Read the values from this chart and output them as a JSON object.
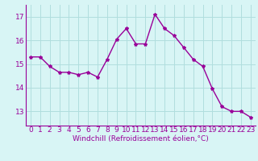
{
  "x": [
    0,
    1,
    2,
    3,
    4,
    5,
    6,
    7,
    8,
    9,
    10,
    11,
    12,
    13,
    14,
    15,
    16,
    17,
    18,
    19,
    20,
    21,
    22,
    23
  ],
  "y": [
    15.3,
    15.3,
    14.9,
    14.65,
    14.65,
    14.55,
    14.65,
    14.45,
    15.2,
    16.05,
    16.5,
    15.85,
    15.85,
    17.1,
    16.5,
    16.2,
    15.7,
    15.2,
    14.9,
    13.95,
    13.2,
    13.0,
    13.0,
    12.75
  ],
  "line_color": "#990099",
  "marker": "*",
  "marker_size": 3,
  "bg_color": "#d8f5f5",
  "grid_color": "#b0dede",
  "xlabel": "Windchill (Refroidissement éolien,°C)",
  "ylabel_ticks": [
    13,
    14,
    15,
    16,
    17
  ],
  "ylim": [
    12.4,
    17.5
  ],
  "xlim": [
    -0.5,
    23.5
  ],
  "xlabel_fontsize": 6.5,
  "tick_fontsize": 6.5,
  "linewidth": 1.0
}
